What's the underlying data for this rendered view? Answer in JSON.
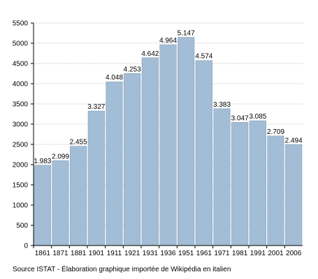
{
  "chart_data": {
    "type": "bar",
    "categories": [
      "1861",
      "1871",
      "1881",
      "1901",
      "1911",
      "1921",
      "1931",
      "1936",
      "1951",
      "1961",
      "1971",
      "1981",
      "1991",
      "2001",
      "2006"
    ],
    "values": [
      1983,
      2099,
      2455,
      3327,
      4048,
      4253,
      4642,
      4964,
      5147,
      4574,
      3383,
      3047,
      3085,
      2709,
      2494
    ],
    "value_labels": [
      "1.983",
      "2.099",
      "2.455",
      "3.327",
      "4.048",
      "4.253",
      "4.642",
      "4.964",
      "5.147",
      "4.574",
      "3.383",
      "3.047",
      "3.085",
      "2.709",
      "2.494"
    ],
    "ylim": [
      0,
      5500
    ],
    "yticks": [
      0,
      500,
      1000,
      1500,
      2000,
      2500,
      3000,
      3500,
      4000,
      4500,
      5000,
      5500
    ],
    "grid": true,
    "bar_color": "#a3bdd6",
    "bar_edge_color": "#7f9ab5",
    "grid_color": "#c8c8c8",
    "title": "",
    "xlabel": "",
    "ylabel": ""
  },
  "footer": {
    "source_note": "Source ISTAT - Élaboration graphique importée de Wikipédia en italien"
  }
}
